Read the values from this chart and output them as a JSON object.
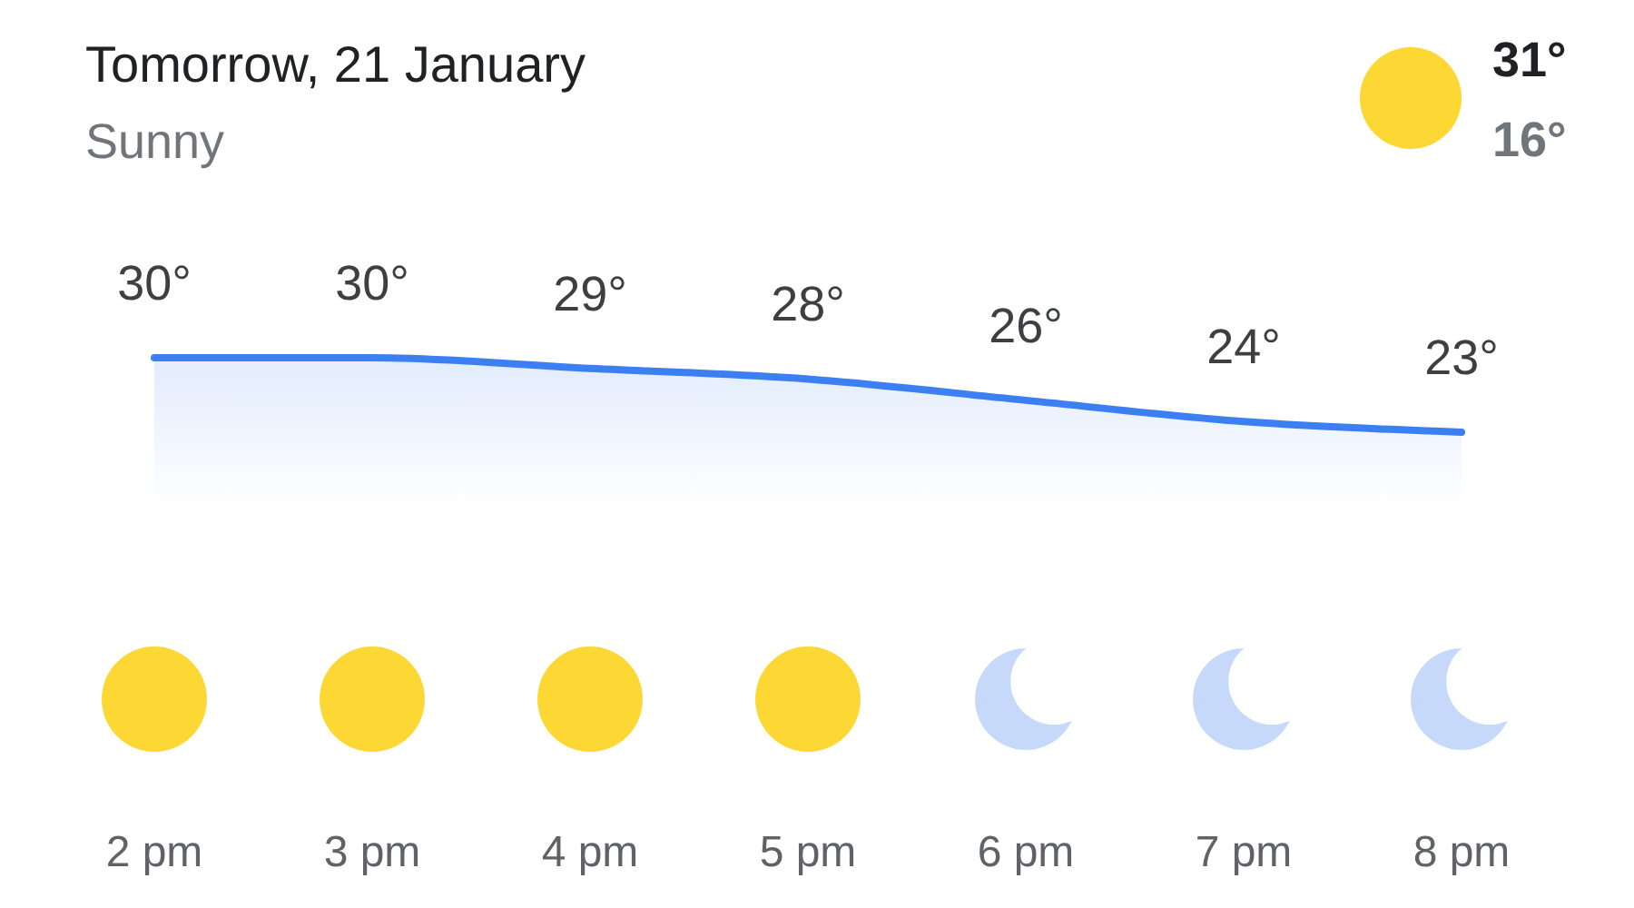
{
  "chart_data": {
    "type": "area",
    "title": "Tomorrow, 21 January",
    "subtitle": "Sunny",
    "annotations": [
      "31°",
      "16°"
    ],
    "categories": [
      "2 pm",
      "3 pm",
      "4 pm",
      "5 pm",
      "6 pm",
      "7 pm",
      "8 pm"
    ],
    "series": [
      {
        "color": "#3c7ff0",
        "values": [
          30,
          30,
          29,
          28,
          26,
          24,
          23
        ],
        "value_labels": [
          "30°",
          "30°",
          "29°",
          "28°",
          "26°",
          "24°",
          "23°"
        ]
      }
    ]
  }
}
